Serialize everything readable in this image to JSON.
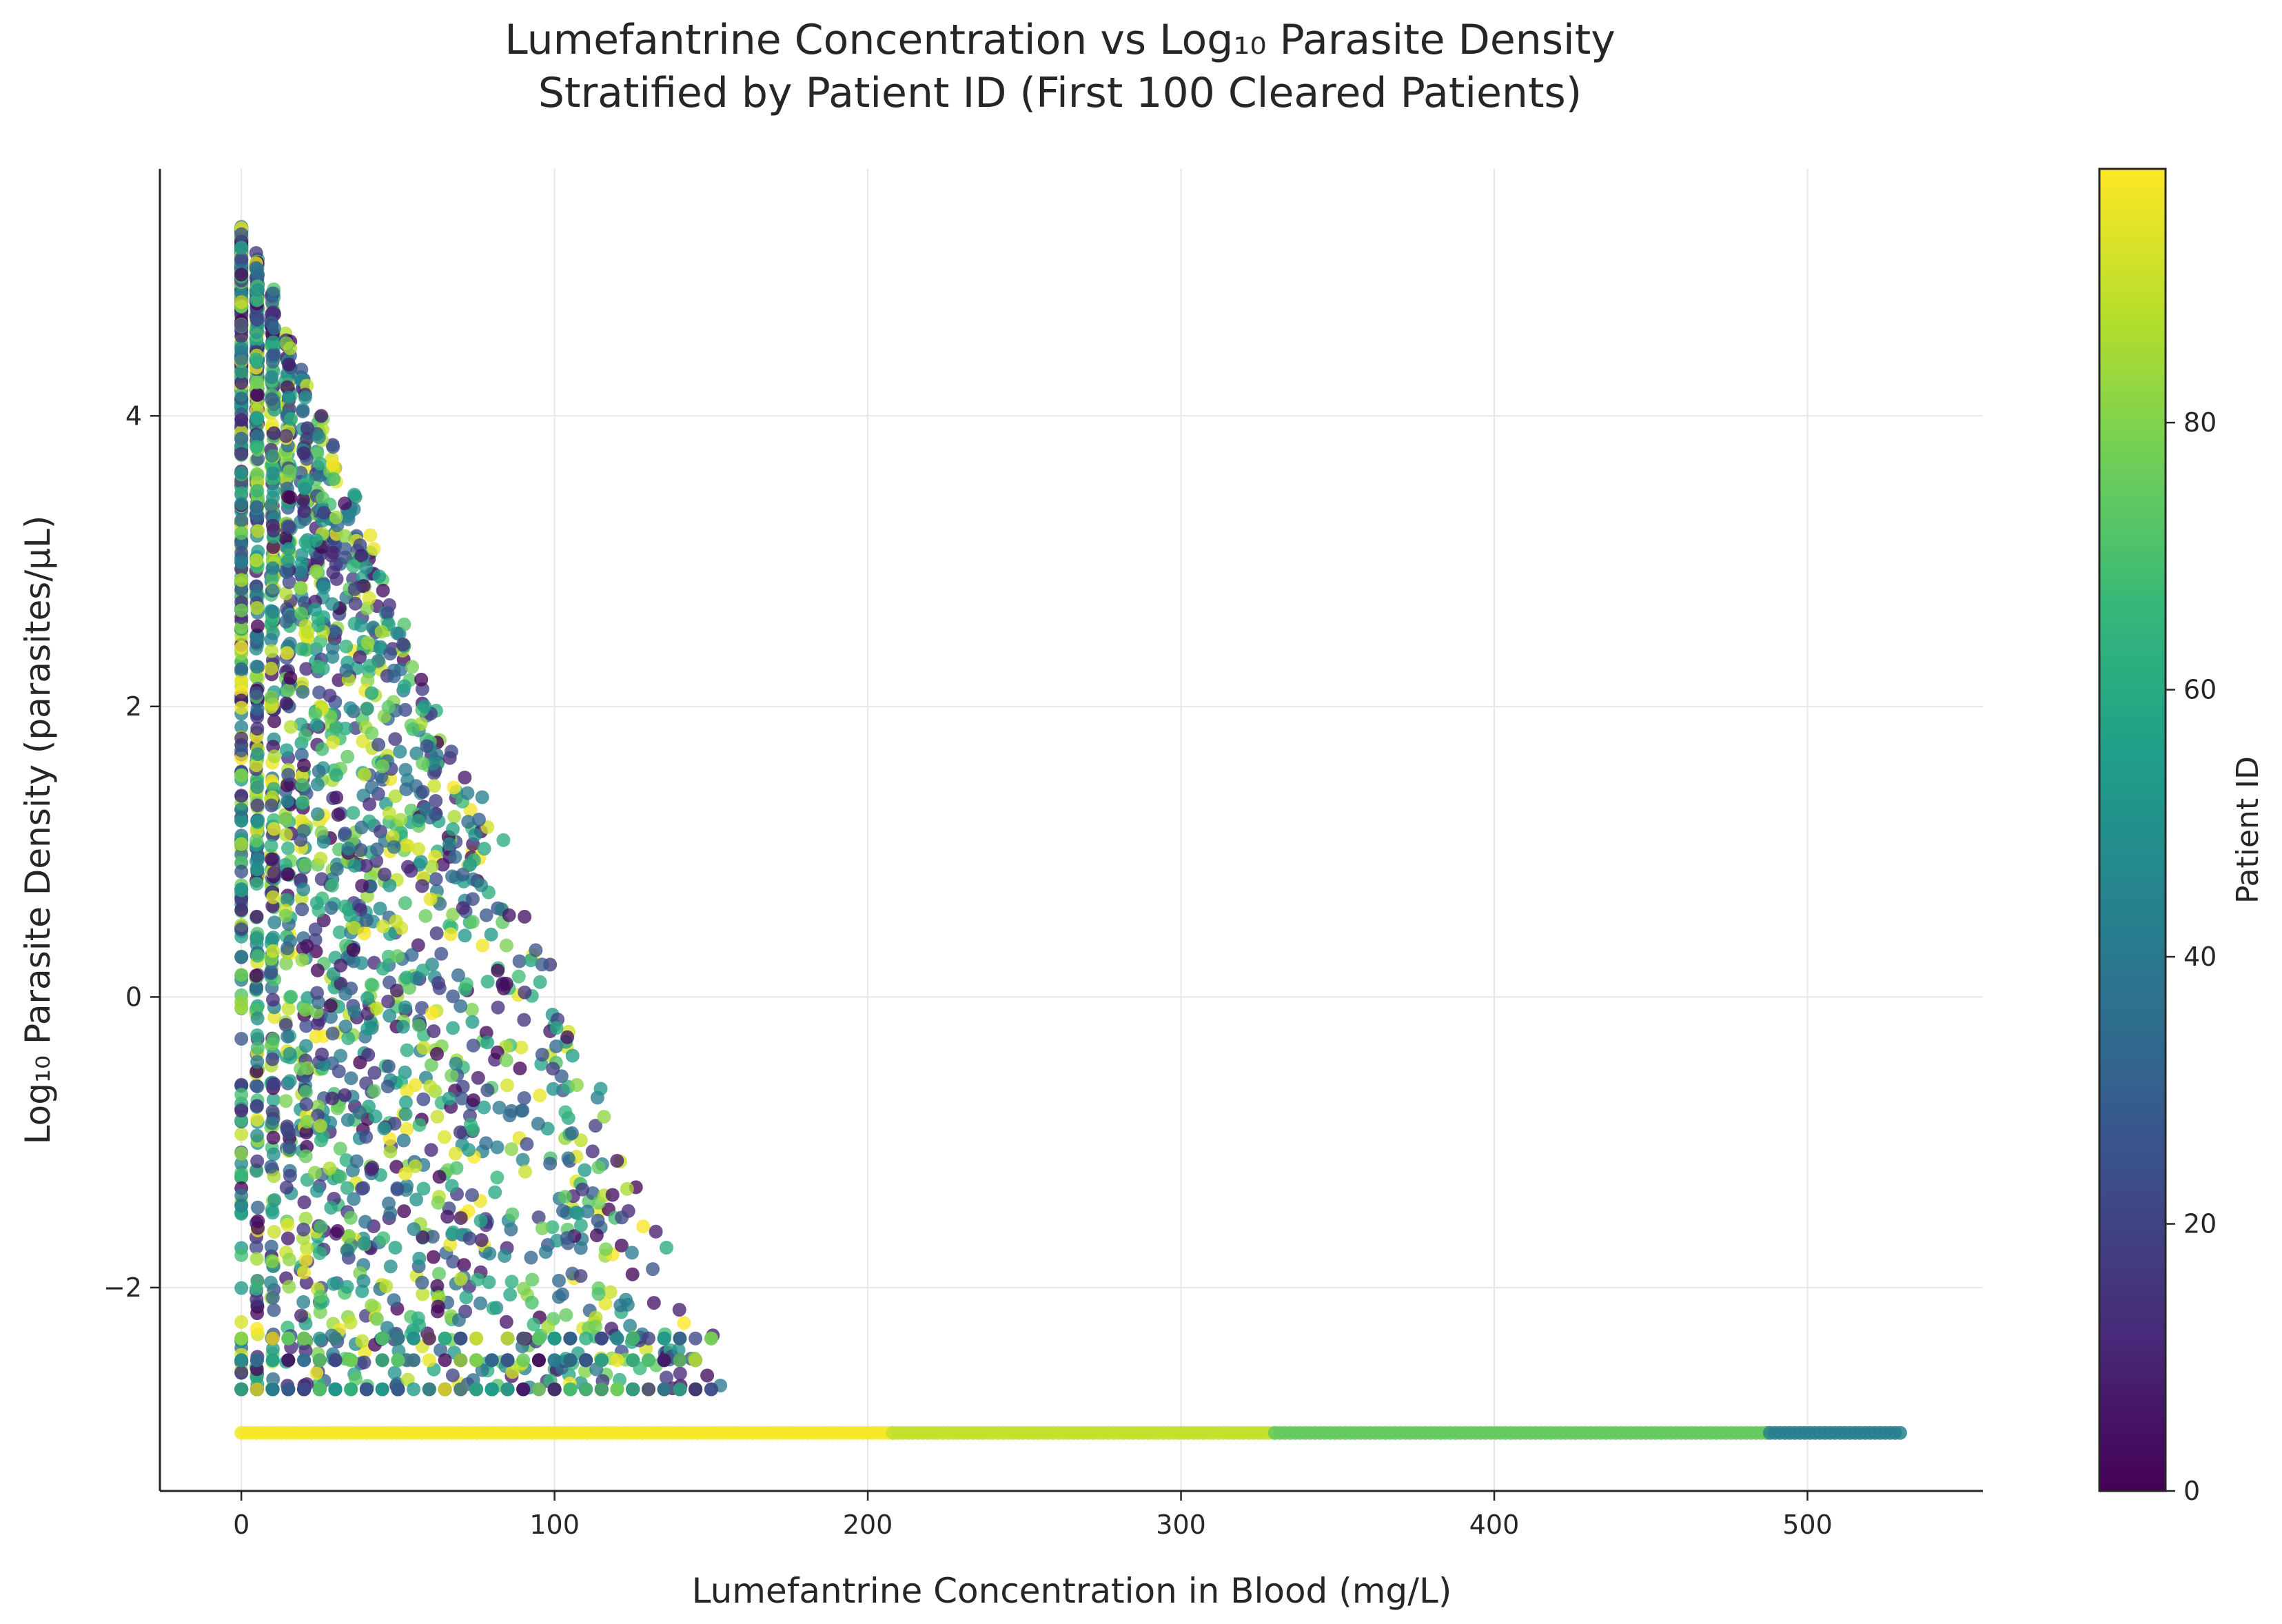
{
  "chart_data": {
    "type": "scatter",
    "title_lines": [
      "Lumefantrine Concentration vs Log₁₀ Parasite Density",
      "Stratified by Patient ID (First 100 Cleared Patients)"
    ],
    "xlabel": "Lumefantrine Concentration in Blood (mg/L)",
    "ylabel": "Log₁₀ Parasite Density (parasites/μL)",
    "xlim": [
      -26,
      556
    ],
    "ylim": [
      -3.4,
      5.7
    ],
    "xticks": [
      {
        "value": 0,
        "label": "0"
      },
      {
        "value": 100,
        "label": "100"
      },
      {
        "value": 200,
        "label": "200"
      },
      {
        "value": 300,
        "label": "300"
      },
      {
        "value": 400,
        "label": "400"
      },
      {
        "value": 500,
        "label": "500"
      }
    ],
    "yticks": [
      {
        "value": -2,
        "label": "−2"
      },
      {
        "value": 0,
        "label": "0"
      },
      {
        "value": 2,
        "label": "2"
      },
      {
        "value": 4,
        "label": "4"
      }
    ],
    "grid": true,
    "colorbar": {
      "label": "Patient ID",
      "range": [
        0,
        99
      ],
      "ticks": [
        {
          "value": 0,
          "label": "0"
        },
        {
          "value": 20,
          "label": "20"
        },
        {
          "value": 40,
          "label": "40"
        },
        {
          "value": 60,
          "label": "60"
        },
        {
          "value": 80,
          "label": "80"
        }
      ],
      "colormap": "viridis",
      "stops": [
        "#440154",
        "#482878",
        "#3e4989",
        "#31688e",
        "#26828e",
        "#1f9e89",
        "#35b779",
        "#6ece58",
        "#b5de2b",
        "#fde725"
      ]
    },
    "series_description": "Each point is one measurement colored by patient ID (0-99)",
    "floor_segments": [
      {
        "x_start": 0,
        "x_end": 208,
        "y": -3.0,
        "patient_id": 98
      },
      {
        "x_start": 208,
        "x_end": 330,
        "y": -3.0,
        "patient_id": 90
      },
      {
        "x_start": 330,
        "x_end": 488,
        "y": -3.0,
        "patient_id": 75
      },
      {
        "x_start": 488,
        "x_end": 530,
        "y": -3.0,
        "patient_id": 43
      }
    ],
    "detection_floor_y": -2.7,
    "scatter_envelope": {
      "description": "Points fill a triangular region from (0, 5.3) down to (150, -2.7)",
      "top_left": [
        0,
        5.3
      ],
      "bottom_right": [
        150,
        -2.7
      ]
    }
  }
}
